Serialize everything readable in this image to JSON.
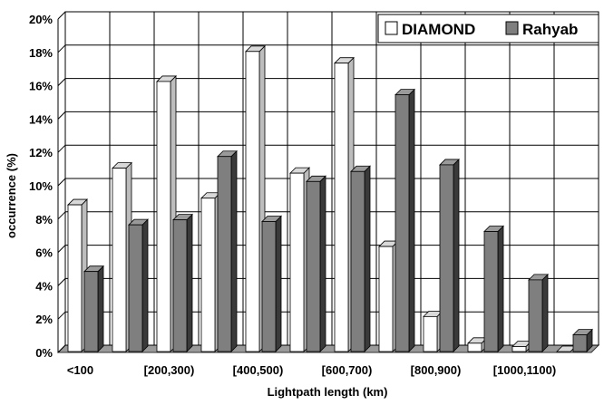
{
  "chart_data": {
    "type": "bar",
    "title": "",
    "xlabel": "Lightpath length (km)",
    "ylabel": "occurrence (%)",
    "ylim": [
      0,
      20
    ],
    "yticks": [
      "0%",
      "2%",
      "4%",
      "6%",
      "8%",
      "10%",
      "12%",
      "14%",
      "16%",
      "18%",
      "20%"
    ],
    "categories": [
      "<100",
      "[100,200)",
      "[200,300)",
      "[300,400)",
      "[400,500)",
      "[500,600)",
      "[600,700)",
      "[700,800)",
      "[800,900)",
      "[900,1000)",
      "[1000,1100)",
      "[1100,1200)"
    ],
    "shown_category_labels": [
      "<100",
      "",
      "[200,300)",
      "",
      "[400,500)",
      "",
      "[600,700)",
      "",
      "[800,900)",
      "",
      "[1000,1100)",
      ""
    ],
    "series": [
      {
        "name": "DIAMOND",
        "color": "#ffffff",
        "values": [
          8.8,
          11.0,
          16.2,
          9.2,
          18.0,
          10.7,
          17.3,
          6.3,
          2.1,
          0.5,
          0.3,
          0.0
        ]
      },
      {
        "name": "Rahyab",
        "color": "#7f7f7f",
        "values": [
          4.8,
          7.6,
          7.9,
          11.7,
          7.8,
          10.2,
          10.8,
          15.4,
          11.2,
          7.2,
          4.3,
          1.0
        ]
      }
    ],
    "grid": true,
    "legend_position": "top-right",
    "style": "3d-clustered-column"
  }
}
